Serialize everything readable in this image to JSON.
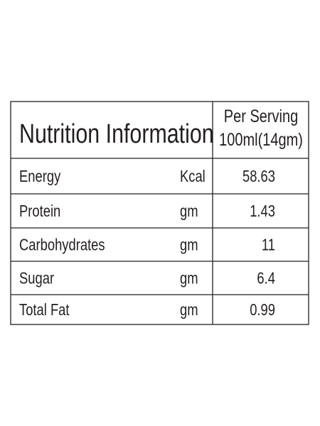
{
  "header": {
    "title": "Nutrition Information",
    "serving": [
      "Per Serving",
      "100ml(14gm)"
    ]
  },
  "table": {
    "rows": [
      [
        "Energy",
        "Kcal",
        58.63
      ],
      [
        "Protein",
        "gm",
        1.43
      ],
      [
        "Carbohydrates",
        "gm",
        11
      ],
      [
        "Sugar",
        "gm",
        6.4
      ],
      [
        "Total Fat",
        "gm",
        0.99
      ]
    ]
  }
}
